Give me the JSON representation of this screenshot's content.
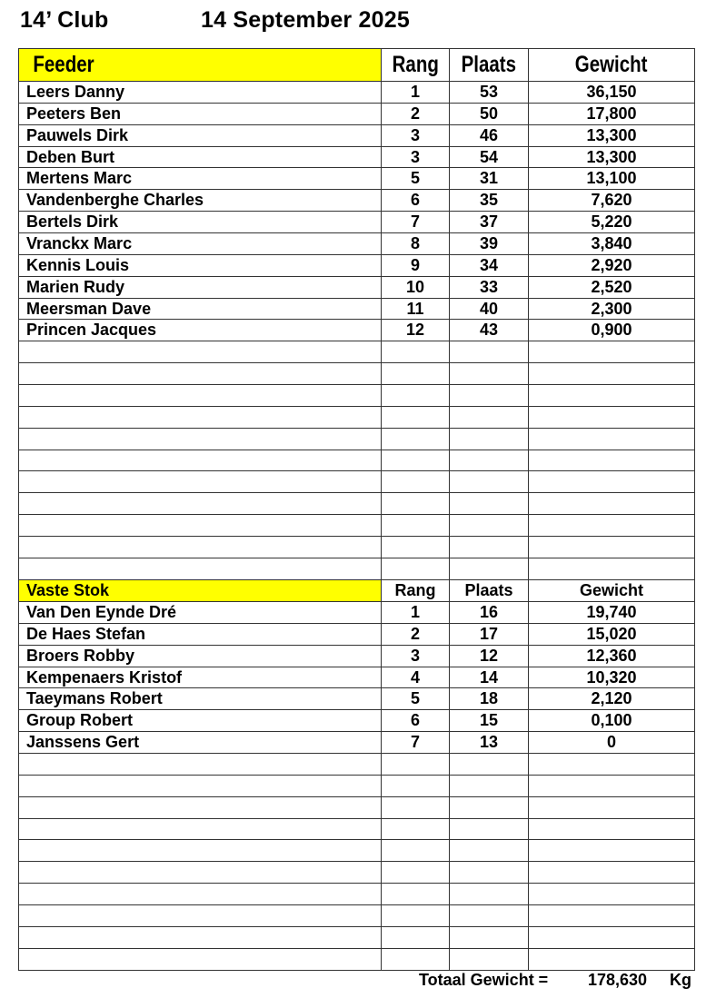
{
  "header": {
    "club": "14’ Club",
    "date": "14 September 2025"
  },
  "columns": {
    "rang": "Rang",
    "plaats": "Plaats",
    "gewicht": "Gewicht"
  },
  "highlight_color": "#ffff00",
  "feeder": {
    "title": "Feeder",
    "rows": [
      {
        "name": "Leers Danny",
        "rang": "1",
        "plaats": "53",
        "gewicht": "36,150"
      },
      {
        "name": "Peeters Ben",
        "rang": "2",
        "plaats": "50",
        "gewicht": "17,800"
      },
      {
        "name": "Pauwels Dirk",
        "rang": "3",
        "plaats": "46",
        "gewicht": "13,300"
      },
      {
        "name": "Deben Burt",
        "rang": "3",
        "plaats": "54",
        "gewicht": "13,300"
      },
      {
        "name": "Mertens Marc",
        "rang": "5",
        "plaats": "31",
        "gewicht": "13,100"
      },
      {
        "name": "Vandenberghe Charles",
        "rang": "6",
        "plaats": "35",
        "gewicht": "7,620"
      },
      {
        "name": "Bertels Dirk",
        "rang": "7",
        "plaats": "37",
        "gewicht": "5,220"
      },
      {
        "name": "Vranckx Marc",
        "rang": "8",
        "plaats": "39",
        "gewicht": "3,840"
      },
      {
        "name": "Kennis Louis",
        "rang": "9",
        "plaats": "34",
        "gewicht": "2,920"
      },
      {
        "name": "Marien Rudy",
        "rang": "10",
        "plaats": "33",
        "gewicht": "2,520"
      },
      {
        "name": "Meersman Dave",
        "rang": "11",
        "plaats": "40",
        "gewicht": "2,300"
      },
      {
        "name": "Princen Jacques",
        "rang": "12",
        "plaats": "43",
        "gewicht": "0,900"
      }
    ]
  },
  "vaste_stok": {
    "title": "Vaste Stok",
    "rows": [
      {
        "name": "Van Den Eynde Dré",
        "rang": "1",
        "plaats": "16",
        "gewicht": "19,740"
      },
      {
        "name": "De Haes Stefan",
        "rang": "2",
        "plaats": "17",
        "gewicht": "15,020"
      },
      {
        "name": "Broers Robby",
        "rang": "3",
        "plaats": "12",
        "gewicht": "12,360"
      },
      {
        "name": "Kempenaers Kristof",
        "rang": "4",
        "plaats": "14",
        "gewicht": "10,320"
      },
      {
        "name": "Taeymans Robert",
        "rang": "5",
        "plaats": "18",
        "gewicht": "2,120"
      },
      {
        "name": "Group Robert",
        "rang": "6",
        "plaats": "15",
        "gewicht": "0,100"
      },
      {
        "name": "Janssens Gert",
        "rang": "7",
        "plaats": "13",
        "gewicht": "0"
      }
    ]
  },
  "total": {
    "label": "Totaal Gewicht =",
    "value": "178,630",
    "unit": "Kg"
  }
}
